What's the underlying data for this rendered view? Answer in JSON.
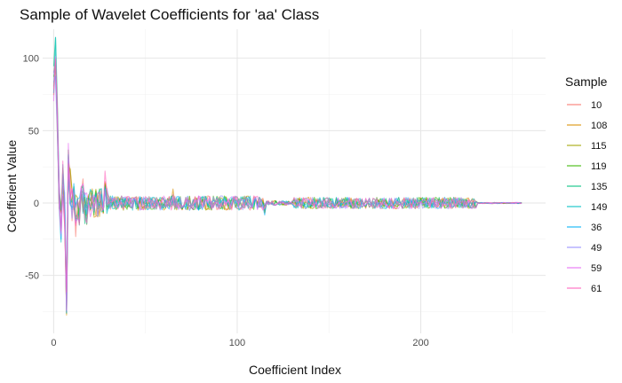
{
  "chart_data": {
    "type": "line",
    "title": "Sample of Wavelet Coefficients for 'aa' Class",
    "xlabel": "Coefficient Index",
    "ylabel": "Coefficient Value",
    "xlim": [
      -6,
      268
    ],
    "ylim": [
      -90,
      120
    ],
    "xticks": [
      0,
      100,
      200
    ],
    "yticks": [
      -50,
      0,
      50,
      100
    ],
    "grid": true,
    "legend": {
      "title": "Sample",
      "position": "right"
    },
    "series": [
      {
        "name": "10",
        "color": "#F8766D"
      },
      {
        "name": "108",
        "color": "#D89000"
      },
      {
        "name": "115",
        "color": "#A3A500"
      },
      {
        "name": "119",
        "color": "#39B600"
      },
      {
        "name": "135",
        "color": "#00BF7D"
      },
      {
        "name": "149",
        "color": "#00BFC4"
      },
      {
        "name": "36",
        "color": "#00B0F6"
      },
      {
        "name": "49",
        "color": "#9590FF"
      },
      {
        "name": "59",
        "color": "#E76BF3"
      },
      {
        "name": "61",
        "color": "#FF62BC"
      }
    ],
    "x_count": 256,
    "segments_y": {
      "head": [
        [
          0,
          85
        ],
        [
          1,
          100
        ],
        [
          2,
          60
        ],
        [
          3,
          5
        ],
        [
          4,
          -12
        ],
        [
          5,
          15
        ],
        [
          6,
          -5
        ],
        [
          7,
          -70
        ],
        [
          8,
          30
        ],
        [
          9,
          10
        ],
        [
          10,
          0
        ],
        [
          11,
          5
        ],
        [
          12,
          -10
        ],
        [
          13,
          0
        ],
        [
          14,
          -8
        ],
        [
          15,
          12
        ],
        [
          16,
          5
        ],
        [
          17,
          0
        ],
        [
          18,
          -5
        ],
        [
          19,
          3
        ]
      ]
    }
  }
}
